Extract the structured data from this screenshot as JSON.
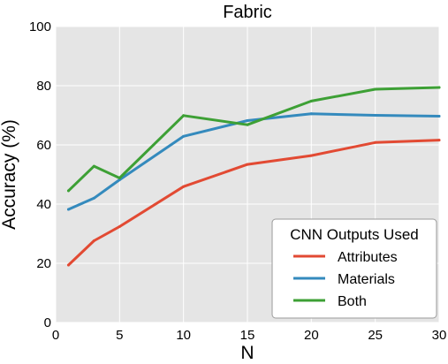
{
  "chart_data": {
    "type": "line",
    "title": "Fabric",
    "xlabel": "N",
    "ylabel": "Accuracy (%)",
    "xlim": [
      0,
      30
    ],
    "ylim": [
      0,
      100
    ],
    "xticks": [
      0,
      5,
      10,
      15,
      20,
      25,
      30
    ],
    "yticks": [
      0,
      20,
      40,
      60,
      80,
      100
    ],
    "grid": true,
    "background": "#e5e5e5",
    "legend": {
      "title": "CNN Outputs Used",
      "placement": "lower-right"
    },
    "x": [
      1,
      3,
      5,
      10,
      15,
      20,
      25,
      30
    ],
    "series": [
      {
        "name": "Attributes",
        "color": "#e24a33",
        "values": [
          19.4,
          27.6,
          32.4,
          45.9,
          53.4,
          56.4,
          60.8,
          61.6
        ]
      },
      {
        "name": "Materials",
        "color": "#348abd",
        "values": [
          38.2,
          42.0,
          48.2,
          62.9,
          68.2,
          70.5,
          70.0,
          69.7
        ]
      },
      {
        "name": "Both",
        "color": "#3da035",
        "values": [
          44.5,
          52.8,
          48.8,
          69.9,
          66.8,
          74.8,
          78.8,
          79.4
        ]
      }
    ]
  }
}
